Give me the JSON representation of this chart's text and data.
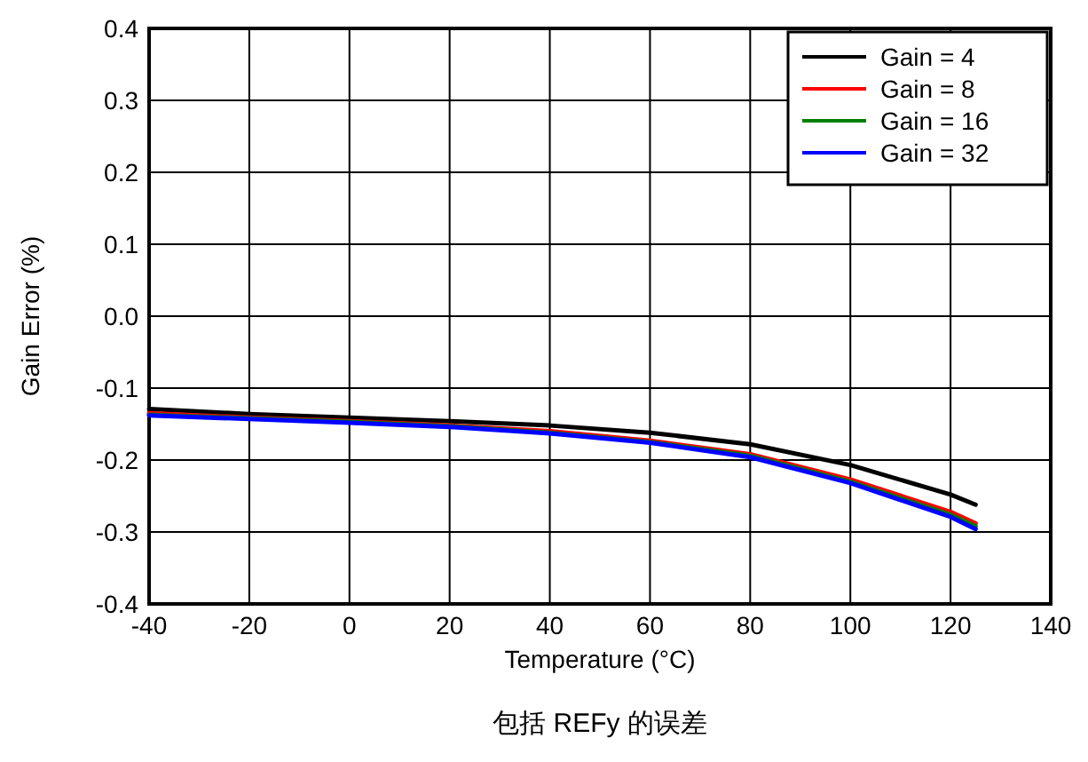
{
  "chart_data": {
    "type": "line",
    "xlabel": "Temperature (°C)",
    "ylabel": "Gain Error (%)",
    "x": [
      -40,
      -20,
      0,
      20,
      40,
      60,
      80,
      100,
      120,
      125
    ],
    "series": [
      {
        "name": "Gain = 4",
        "color": "#000000",
        "values": [
          -0.129,
          -0.136,
          -0.141,
          -0.146,
          -0.152,
          -0.162,
          -0.178,
          -0.207,
          -0.248,
          -0.262
        ]
      },
      {
        "name": "Gain = 8",
        "color": "#ff0000",
        "values": [
          -0.135,
          -0.141,
          -0.146,
          -0.152,
          -0.16,
          -0.173,
          -0.192,
          -0.227,
          -0.272,
          -0.288
        ]
      },
      {
        "name": "Gain = 16",
        "color": "#008000",
        "values": [
          -0.137,
          -0.142,
          -0.147,
          -0.153,
          -0.162,
          -0.175,
          -0.194,
          -0.23,
          -0.276,
          -0.292
        ]
      },
      {
        "name": "Gain = 32",
        "color": "#0000ff",
        "values": [
          -0.138,
          -0.143,
          -0.148,
          -0.154,
          -0.163,
          -0.176,
          -0.196,
          -0.232,
          -0.279,
          -0.296
        ]
      }
    ],
    "xlim": [
      -40,
      140
    ],
    "xticks": [
      -40,
      -20,
      0,
      20,
      40,
      60,
      80,
      100,
      120,
      140
    ],
    "ylim": [
      -0.4,
      0.4
    ],
    "yticks": [
      {
        "value": -0.4,
        "label": "-0.4"
      },
      {
        "value": -0.3,
        "label": "-0.3"
      },
      {
        "value": -0.2,
        "label": "-0.2"
      },
      {
        "value": -0.1,
        "label": "-0.1"
      },
      {
        "value": 0,
        "label": "0.0"
      },
      {
        "value": 0.1,
        "label": "0.1"
      },
      {
        "value": 0.2,
        "label": "0.2"
      },
      {
        "value": 0.3,
        "label": "0.3"
      },
      {
        "value": 0.4,
        "label": "0.4"
      }
    ],
    "grid": true,
    "legend": "top right",
    "annotations": [
      "包括 REFy 的误差"
    ]
  }
}
